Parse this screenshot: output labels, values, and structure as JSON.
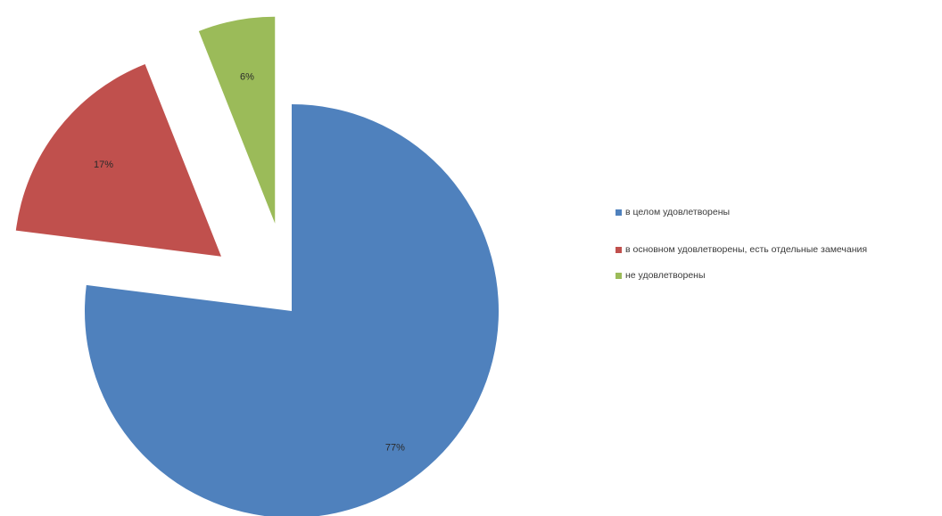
{
  "chart_data": {
    "type": "pie",
    "title": "",
    "slices": [
      {
        "label": "в целом удовлетворены",
        "value": 77,
        "display": "77%",
        "color": "#4f81bd",
        "exploded": false
      },
      {
        "label": "в основном удовлетворены, есть отдельные замечания",
        "value": 17,
        "display": "17%",
        "color": "#c0504d",
        "exploded": true
      },
      {
        "label": "не удовлетворены",
        "value": 6,
        "display": "6%",
        "color": "#9bbb59",
        "exploded": true
      }
    ],
    "start_angle_deg": 0,
    "direction": "clockwise",
    "legend_position": "right"
  }
}
